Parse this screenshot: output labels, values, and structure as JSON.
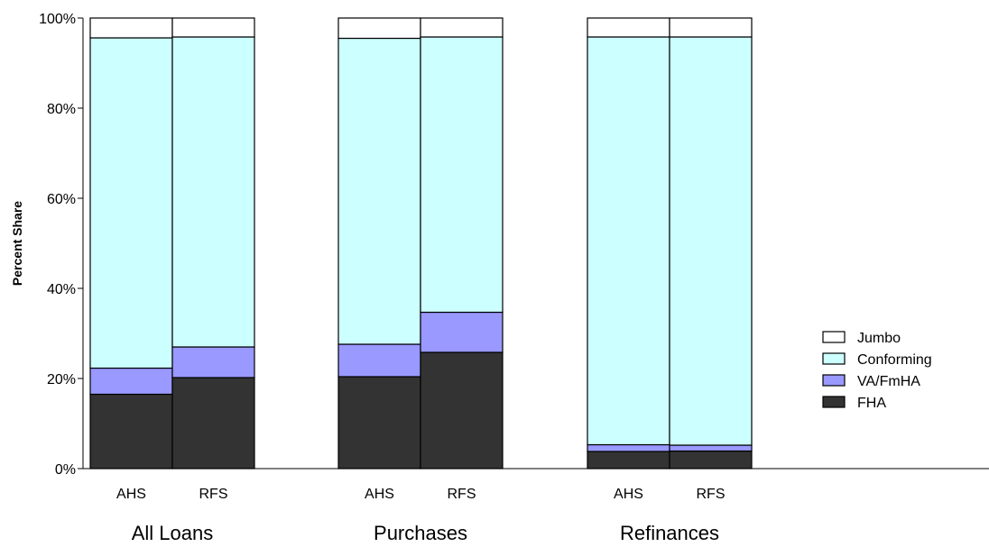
{
  "chart_data": {
    "type": "bar",
    "stacked": true,
    "ylabel": "Percent Share",
    "ylim": [
      0,
      100
    ],
    "y_ticks": [
      "0%",
      "20%",
      "40%",
      "60%",
      "80%",
      "100%"
    ],
    "groups": [
      {
        "label": "All Loans",
        "bars": [
          "AHS",
          "RFS"
        ]
      },
      {
        "label": "Purchases",
        "bars": [
          "AHS",
          "RFS"
        ]
      },
      {
        "label": "Refinances",
        "bars": [
          "AHS",
          "RFS"
        ]
      }
    ],
    "categories": [
      "All Loans AHS",
      "All Loans RFS",
      "Purchases AHS",
      "Purchases RFS",
      "Refinances AHS",
      "Refinances RFS"
    ],
    "series": [
      {
        "name": "FHA",
        "color": "#333333",
        "values": [
          16.5,
          20.2,
          20.4,
          25.8,
          3.8,
          3.9
        ]
      },
      {
        "name": "VA/FmHA",
        "color": "#9999ff",
        "values": [
          5.8,
          6.8,
          7.2,
          8.9,
          1.5,
          1.3
        ]
      },
      {
        "name": "Conforming",
        "color": "#ccffff",
        "values": [
          73.3,
          68.8,
          67.9,
          61.1,
          90.5,
          90.6
        ]
      },
      {
        "name": "Jumbo",
        "color": "#ffffff",
        "values": [
          4.4,
          4.2,
          4.5,
          4.2,
          4.2,
          4.2
        ]
      }
    ],
    "legend": {
      "position": "right",
      "entries": [
        "Jumbo",
        "Conforming",
        "VA/FmHA",
        "FHA"
      ]
    },
    "grid": false
  }
}
